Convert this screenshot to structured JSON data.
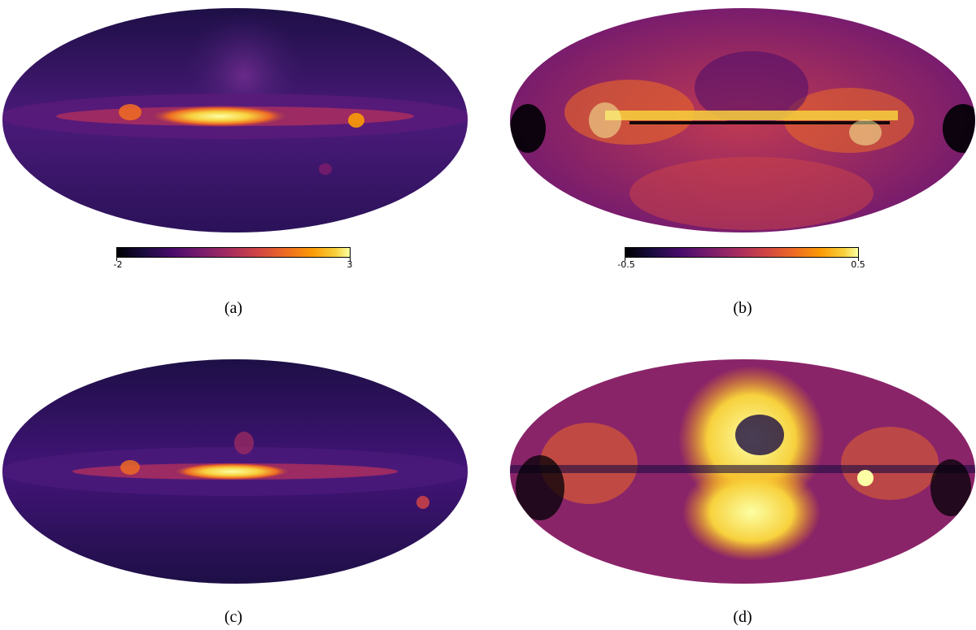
{
  "panels": [
    {
      "id": "a",
      "caption": "(a)",
      "colorbar": {
        "min_label": "-2",
        "max_label": "3"
      },
      "colormap": "inferno"
    },
    {
      "id": "b",
      "caption": "(b)",
      "colorbar": {
        "min_label": "-0.5",
        "max_label": "0.5"
      },
      "colormap": "inferno"
    },
    {
      "id": "c",
      "caption": "(c)",
      "colormap": "inferno"
    },
    {
      "id": "d",
      "caption": "(d)",
      "colormap": "inferno"
    }
  ],
  "colors": {
    "dark": "#1b0c41",
    "mid": "#781c6d",
    "orange": "#ed6925",
    "yellow": "#fcffa4"
  }
}
